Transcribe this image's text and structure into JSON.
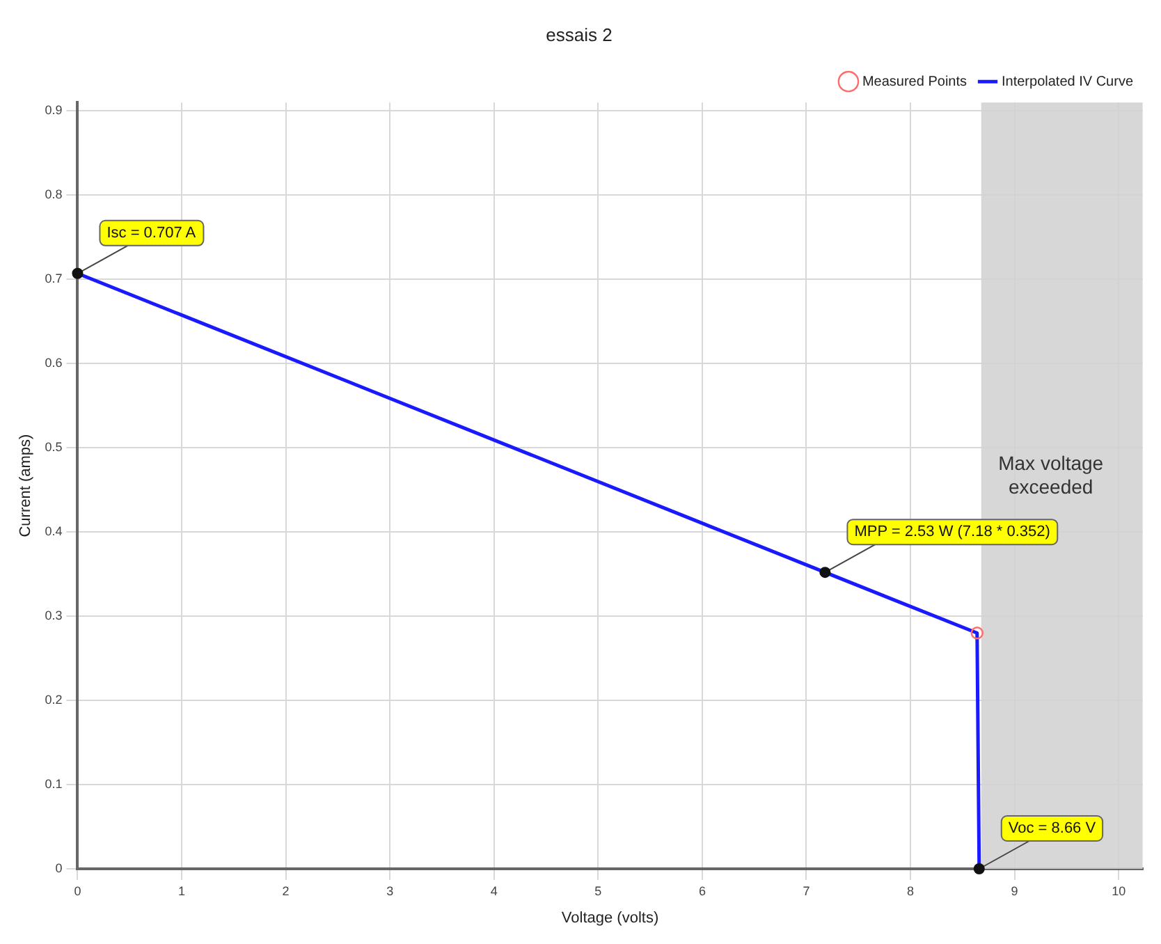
{
  "chart_data": {
    "type": "line",
    "title": "essais 2",
    "xlabel": "Voltage (volts)",
    "ylabel": "Current (amps)",
    "xlim": [
      0,
      10.23
    ],
    "xticks": [
      0,
      1,
      2,
      3,
      4,
      5,
      6,
      7,
      8,
      9,
      10
    ],
    "ylim": [
      0,
      0.91
    ],
    "yticks": [
      0.0,
      0.1,
      0.2,
      0.3,
      0.4,
      0.5,
      0.6,
      0.7,
      0.8,
      0.9
    ],
    "grid": true,
    "legend": "top right",
    "series": [
      {
        "name": "Measured Points",
        "type": "scatter",
        "marker": "circle",
        "color": "#ff6b6b",
        "x": [
          8.64
        ],
        "values": [
          0.28
        ]
      },
      {
        "name": "Interpolated IV Curve",
        "type": "line",
        "color": "#1a1aff",
        "x": [
          0,
          7.18,
          8.64,
          8.66
        ],
        "values": [
          0.707,
          0.352,
          0.28,
          0
        ]
      }
    ],
    "bands": [
      {
        "axis": "x",
        "from": 8.68,
        "to": 10.23,
        "label": "Max voltage exceeded",
        "color": "#d3d3d3"
      }
    ],
    "annotations": [
      {
        "text": "Isc = 0.707 A",
        "x": 0,
        "y": 0.707
      },
      {
        "text": "MPP = 2.53 W (7.18 * 0.352)",
        "x": 7.18,
        "y": 0.352
      },
      {
        "text": "Voc = 8.66 V",
        "x": 8.66,
        "y": 0
      }
    ]
  }
}
